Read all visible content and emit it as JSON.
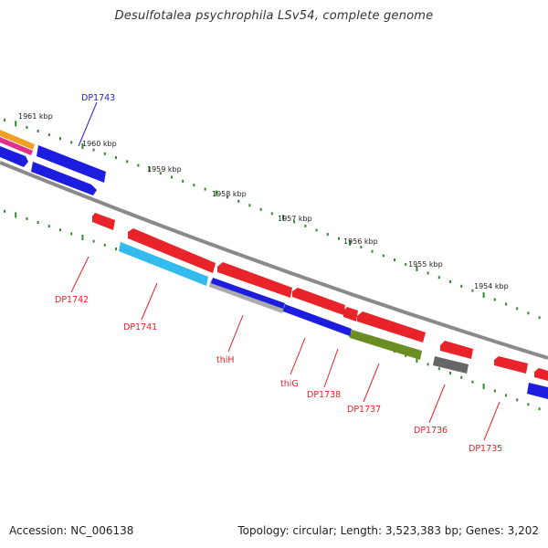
{
  "title": "Desulfotalea psychrophila LSv54, complete genome",
  "footer": {
    "accession": "Accession: NC_006138",
    "summary": "Topology: circular; Length: 3,523,383 bp; Genes: 3,202"
  },
  "colors": {
    "red": "#e8232a",
    "blue": "#1d1de0",
    "cyan": "#33bbee",
    "olive": "#6b8e23",
    "gray": "#777777",
    "orange": "#f0a020",
    "magenta": "#e0308a",
    "tick": "#2e8b2e",
    "backbone": "#8a8a8a"
  },
  "scale_labels": [
    "1961 kbp",
    "1960 kbp",
    "1959 kbp",
    "1958 kbp",
    "1957 kbp",
    "1956 kbp",
    "1955 kbp",
    "1954 kbp"
  ],
  "gene_labels": {
    "dp1743": "DP1743",
    "dp1742": "DP1742",
    "dp1741": "DP1741",
    "thih": "thiH",
    "thig": "thiG",
    "dp1738": "DP1738",
    "dp1737": "DP1737",
    "dp1736": "DP1736",
    "dp1735": "DP1735"
  }
}
